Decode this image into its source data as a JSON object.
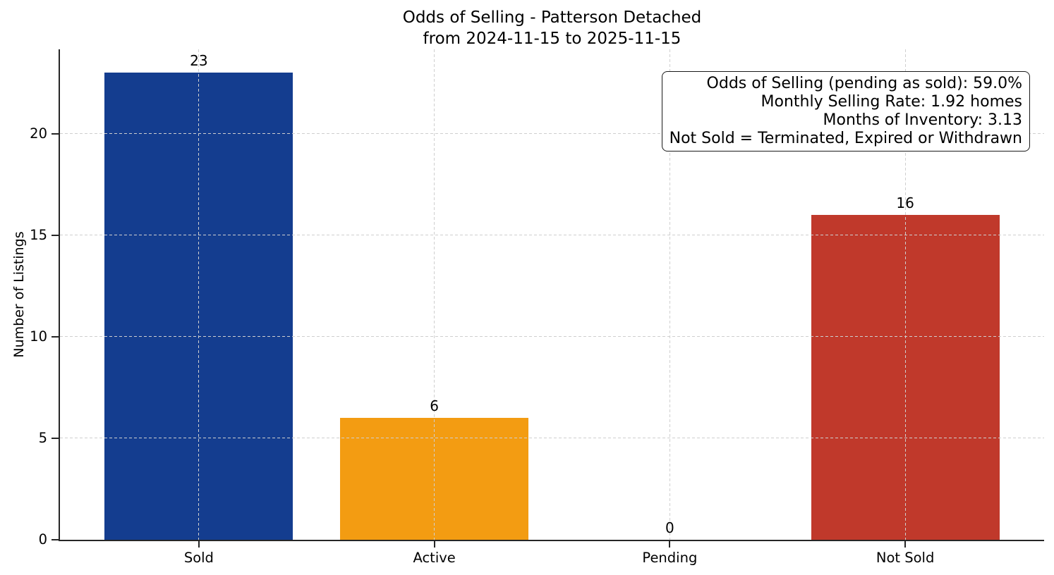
{
  "figure": {
    "title_line1": "Odds of Selling - Patterson Detached",
    "title_line2": "from 2024-11-15 to 2025-11-15"
  },
  "chart_data": {
    "type": "bar",
    "title": "Odds of Selling - Patterson Detached from 2024-11-15 to 2025-11-15",
    "categories": [
      "Sold",
      "Active",
      "Pending",
      "Not Sold"
    ],
    "values": [
      23,
      6,
      0,
      16
    ],
    "value_labels": [
      "23",
      "6",
      "0",
      "16"
    ],
    "bar_colors": [
      "#143d8f",
      "#f39c12",
      "",
      "#c0392b"
    ],
    "xlabel": "",
    "ylabel": "Number of Listings",
    "ylim": [
      0,
      24.15
    ],
    "yticks": [
      0,
      5,
      10,
      15,
      20
    ],
    "grid": "dashed light-gray horizontal and vertical gridlines drawn over bars",
    "legend_position": "none",
    "annotation": {
      "position": "top-right",
      "lines": [
        "Odds of Selling (pending as sold): 59.0%",
        "Monthly Selling Rate: 1.92 homes",
        "Months of Inventory: 3.13",
        "Not Sold = Terminated, Expired or Withdrawn"
      ]
    }
  }
}
